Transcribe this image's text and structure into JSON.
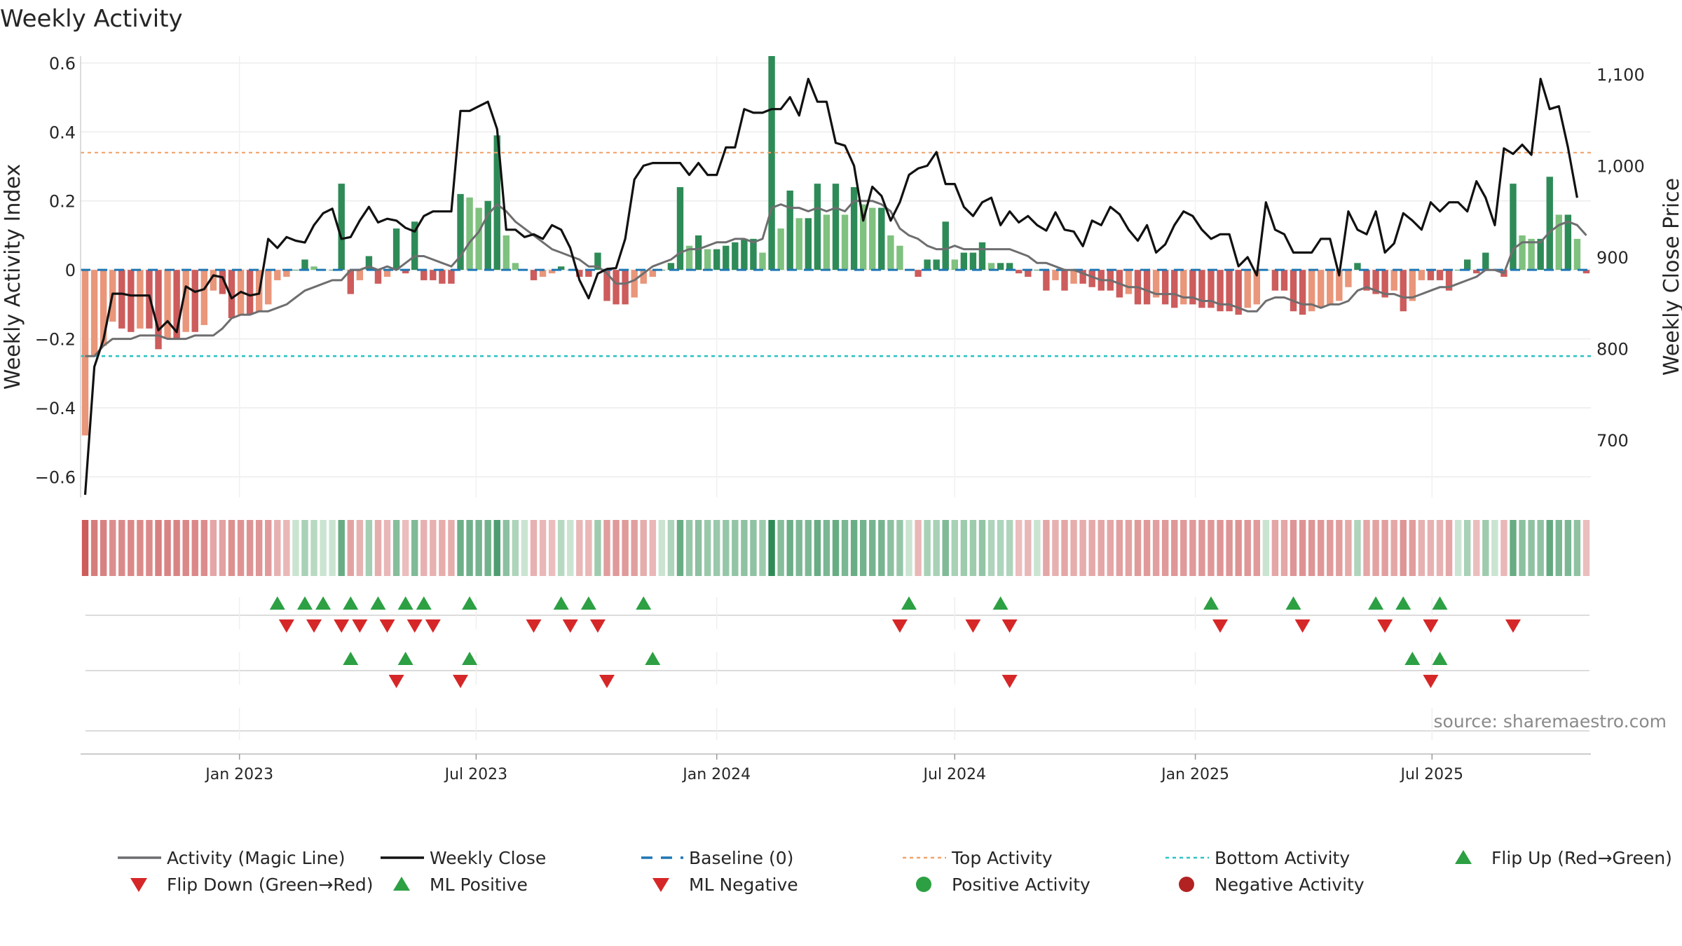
{
  "title": "Weekly Activity",
  "source": "source: sharemaestro.com",
  "colors": {
    "magic_line": "#6e6e70",
    "weekly_close": "#111111",
    "baseline": "#1f77b4",
    "top_activity": "#f2a36a",
    "bottom_activity": "#2ec4c4",
    "flip_up": "#2ca043",
    "flip_down": "#d62728",
    "strong_green": "#2e8b57",
    "light_green": "#7fc17f",
    "strong_red": "#cd5c5c",
    "light_red": "#e9967a"
  },
  "chart_data": {
    "type": "bar",
    "x_start": "2022-09-05",
    "interval_days": 7,
    "left_axis": {
      "label": "Weekly Activity Index",
      "ylim": [
        -0.66,
        0.62
      ],
      "ticks": [
        -0.6,
        -0.4,
        -0.2,
        0,
        0.2,
        0.4,
        0.6
      ],
      "tick_labels": [
        "−0.6",
        "−0.4",
        "−0.2",
        "0",
        "0.2",
        "0.4",
        "0.6"
      ]
    },
    "right_axis": {
      "label": "Weekly Close Price",
      "ylim": [
        637,
        1120
      ],
      "ticks": [
        700,
        800,
        900,
        1000,
        1100
      ],
      "tick_labels": [
        "700",
        "800",
        "900",
        "1,000",
        "1,100"
      ]
    },
    "x_ticks": [
      {
        "label": "Jan 2023",
        "date": "2023-01-01"
      },
      {
        "label": "Jul 2023",
        "date": "2023-07-01"
      },
      {
        "label": "Jan 2024",
        "date": "2024-01-01"
      },
      {
        "label": "Jul 2024",
        "date": "2024-07-01"
      },
      {
        "label": "Jan 2025",
        "date": "2025-01-01"
      },
      {
        "label": "Jul 2025",
        "date": "2025-07-01"
      }
    ],
    "top_activity": 0.34,
    "bottom_activity": -0.25,
    "series": [
      {
        "name": "Weekly Activity Index",
        "kind": "bar",
        "values": [
          -0.48,
          -0.25,
          -0.22,
          -0.15,
          -0.17,
          -0.18,
          -0.17,
          -0.17,
          -0.23,
          -0.2,
          -0.2,
          -0.18,
          -0.18,
          -0.16,
          -0.06,
          -0.07,
          -0.14,
          -0.13,
          -0.13,
          -0.12,
          -0.1,
          -0.03,
          -0.02,
          0.0,
          0.03,
          0.01,
          0.0,
          0.0,
          0.25,
          -0.07,
          -0.03,
          0.04,
          -0.04,
          -0.02,
          0.12,
          -0.01,
          0.14,
          -0.03,
          -0.03,
          -0.04,
          -0.04,
          0.22,
          0.21,
          0.18,
          0.2,
          0.39,
          0.1,
          0.02,
          0.0,
          -0.03,
          -0.02,
          -0.01,
          0.01,
          0.0,
          -0.02,
          -0.02,
          0.05,
          -0.09,
          -0.1,
          -0.1,
          -0.08,
          -0.04,
          -0.02,
          0.0,
          0.02,
          0.24,
          0.07,
          0.1,
          0.06,
          0.06,
          0.07,
          0.08,
          0.09,
          0.09,
          0.05,
          0.62,
          0.12,
          0.23,
          0.15,
          0.15,
          0.25,
          0.16,
          0.25,
          0.16,
          0.24,
          0.19,
          0.18,
          0.18,
          0.1,
          0.07,
          0.0,
          -0.02,
          0.03,
          0.03,
          0.14,
          0.03,
          0.05,
          0.05,
          0.08,
          0.02,
          0.02,
          0.02,
          -0.01,
          -0.02,
          0.0,
          -0.06,
          -0.03,
          -0.06,
          -0.04,
          -0.04,
          -0.05,
          -0.06,
          -0.06,
          -0.08,
          -0.07,
          -0.1,
          -0.1,
          -0.08,
          -0.1,
          -0.11,
          -0.1,
          -0.1,
          -0.11,
          -0.11,
          -0.12,
          -0.12,
          -0.13,
          -0.11,
          -0.1,
          0.0,
          -0.06,
          -0.06,
          -0.12,
          -0.13,
          -0.12,
          -0.11,
          -0.1,
          -0.09,
          -0.05,
          0.02,
          -0.06,
          -0.07,
          -0.08,
          -0.06,
          -0.12,
          -0.09,
          -0.03,
          -0.03,
          -0.03,
          -0.06,
          0.0,
          0.03,
          -0.01,
          0.05,
          0.0,
          -0.02,
          0.25,
          0.1,
          0.09,
          0.09,
          0.27,
          0.16,
          0.16,
          0.09,
          -0.01
        ]
      },
      {
        "name": "Weekly Close",
        "kind": "line",
        "values": [
          640,
          780,
          810,
          860,
          860,
          858,
          858,
          858,
          820,
          830,
          818,
          868,
          862,
          865,
          880,
          878,
          855,
          862,
          858,
          860,
          920,
          910,
          922,
          918,
          916,
          935,
          948,
          953,
          920,
          922,
          940,
          955,
          938,
          942,
          940,
          932,
          928,
          945,
          950,
          950,
          950,
          1060,
          1060,
          1065,
          1070,
          1040,
          930,
          930,
          922,
          925,
          920,
          935,
          930,
          910,
          875,
          855,
          882,
          887,
          888,
          920,
          985,
          1000,
          1003,
          1003,
          1003,
          1003,
          990,
          1003,
          990,
          990,
          1020,
          1020,
          1062,
          1058,
          1058,
          1062,
          1062,
          1075,
          1055,
          1095,
          1070,
          1070,
          1025,
          1022,
          1000,
          940,
          977,
          967,
          940,
          960,
          990,
          997,
          1000,
          1015,
          980,
          980,
          955,
          945,
          960,
          965,
          935,
          950,
          938,
          945,
          935,
          929,
          949,
          930,
          928,
          912,
          940,
          935,
          955,
          947,
          930,
          918,
          935,
          905,
          914,
          935,
          950,
          945,
          930,
          920,
          925,
          925,
          890,
          900,
          880,
          960,
          930,
          925,
          905,
          905,
          905,
          920,
          920,
          880,
          950,
          930,
          925,
          950,
          905,
          915,
          948,
          940,
          930,
          960,
          950,
          960,
          960,
          950,
          983,
          965,
          935,
          1019,
          1013,
          1023,
          1012,
          1095,
          1062,
          1065,
          1020,
          965
        ]
      },
      {
        "name": "Activity (Magic Line)",
        "kind": "line",
        "values": [
          -0.25,
          -0.25,
          -0.22,
          -0.2,
          -0.2,
          -0.2,
          -0.19,
          -0.19,
          -0.19,
          -0.2,
          -0.2,
          -0.2,
          -0.19,
          -0.19,
          -0.19,
          -0.17,
          -0.14,
          -0.13,
          -0.13,
          -0.12,
          -0.12,
          -0.11,
          -0.1,
          -0.08,
          -0.06,
          -0.05,
          -0.04,
          -0.03,
          -0.03,
          0.0,
          0.0,
          0.01,
          0.0,
          0.01,
          0.0,
          0.02,
          0.04,
          0.04,
          0.03,
          0.02,
          0.01,
          0.04,
          0.08,
          0.11,
          0.16,
          0.19,
          0.17,
          0.14,
          0.12,
          0.1,
          0.08,
          0.06,
          0.05,
          0.04,
          0.03,
          0.01,
          0.01,
          -0.01,
          -0.04,
          -0.04,
          -0.03,
          -0.01,
          0.01,
          0.02,
          0.03,
          0.05,
          0.06,
          0.06,
          0.07,
          0.08,
          0.08,
          0.09,
          0.09,
          0.08,
          0.09,
          0.18,
          0.19,
          0.18,
          0.18,
          0.17,
          0.18,
          0.17,
          0.18,
          0.17,
          0.2,
          0.2,
          0.2,
          0.19,
          0.17,
          0.12,
          0.1,
          0.09,
          0.07,
          0.06,
          0.06,
          0.07,
          0.06,
          0.06,
          0.06,
          0.06,
          0.06,
          0.06,
          0.05,
          0.04,
          0.02,
          0.02,
          0.01,
          0.0,
          0.0,
          -0.01,
          -0.02,
          -0.03,
          -0.03,
          -0.04,
          -0.05,
          -0.05,
          -0.06,
          -0.07,
          -0.07,
          -0.07,
          -0.08,
          -0.08,
          -0.09,
          -0.09,
          -0.1,
          -0.1,
          -0.11,
          -0.12,
          -0.12,
          -0.09,
          -0.08,
          -0.08,
          -0.09,
          -0.1,
          -0.1,
          -0.11,
          -0.1,
          -0.1,
          -0.09,
          -0.06,
          -0.05,
          -0.06,
          -0.07,
          -0.07,
          -0.08,
          -0.08,
          -0.07,
          -0.06,
          -0.05,
          -0.05,
          -0.04,
          -0.03,
          -0.02,
          0.0,
          0.0,
          -0.01,
          0.06,
          0.08,
          0.08,
          0.08,
          0.11,
          0.13,
          0.14,
          0.13,
          0.1
        ]
      }
    ],
    "flip_up_rows": [
      {
        "label": "Flip Up (Red→Green)",
        "indices": [
          21,
          24,
          26,
          29,
          32,
          35,
          37,
          42,
          52,
          55,
          61,
          90,
          100,
          123,
          132,
          141,
          144,
          148
        ]
      },
      {
        "label": "ML Positive",
        "indices": [
          29,
          35,
          42,
          62,
          145,
          148
        ]
      }
    ],
    "flip_down_rows": [
      {
        "label": "Flip Down (Green→Red)",
        "indices": [
          22,
          25,
          28,
          30,
          33,
          36,
          38,
          49,
          53,
          56,
          89,
          97,
          101,
          124,
          133,
          142,
          147,
          156
        ]
      },
      {
        "label": "ML Negative",
        "indices": [
          34,
          41,
          57,
          101,
          147
        ]
      }
    ]
  },
  "legend": [
    {
      "label": "Activity (Magic Line)",
      "symbol": "solid-line",
      "color": "#6e6e70"
    },
    {
      "label": "Weekly Close",
      "symbol": "solid-line",
      "color": "#111111"
    },
    {
      "label": "Baseline (0)",
      "symbol": "dashed-line",
      "color": "#1f77b4"
    },
    {
      "label": "Top Activity",
      "symbol": "dotted-line",
      "color": "#f2a36a"
    },
    {
      "label": "Bottom Activity",
      "symbol": "dotted-line",
      "color": "#2ec4c4"
    },
    {
      "label": "Flip Up (Red→Green)",
      "symbol": "triangle-up",
      "color": "#2ca043"
    },
    {
      "label": "Flip Down (Green→Red)",
      "symbol": "triangle-down",
      "color": "#d62728"
    },
    {
      "label": "ML Positive",
      "symbol": "triangle-up",
      "color": "#2ca043"
    },
    {
      "label": "ML Negative",
      "symbol": "triangle-down",
      "color": "#d62728"
    },
    {
      "label": "Positive Activity",
      "symbol": "circle",
      "color": "#2ca043"
    },
    {
      "label": "Negative Activity",
      "symbol": "circle",
      "color": "#b22222"
    }
  ]
}
